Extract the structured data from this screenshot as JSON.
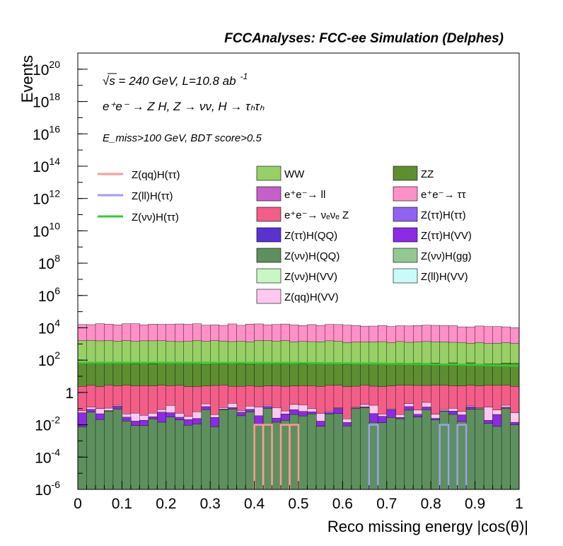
{
  "header": {
    "text": "FCCAnalyses: FCC-ee Simulation (Delphes)"
  },
  "annotations": {
    "line1": "√s = 240 GeV, L=10.8 ab",
    "line1_exp": "-1",
    "line2": "e⁺e⁻ → Z H, Z → νν, H → τₕτₕ",
    "line3": "E_miss>100 GeV, BDT score>0.5"
  },
  "chart_data": {
    "type": "bar",
    "stacked": true,
    "xlabel": "Reco missing energy |cos(θ)|",
    "ylabel": "Events",
    "xlim": [
      0,
      1
    ],
    "ylim": [
      1e-06,
      1e+21
    ],
    "log_y": true,
    "xticks": [
      "0",
      "0.1",
      "0.2",
      "0.3",
      "0.4",
      "0.5",
      "0.6",
      "0.7",
      "0.8",
      "0.9",
      "1"
    ],
    "yticks": [
      {
        "base": "10",
        "exp": "20"
      },
      {
        "base": "10",
        "exp": "18"
      },
      {
        "base": "10",
        "exp": "16"
      },
      {
        "base": "10",
        "exp": "14"
      },
      {
        "base": "10",
        "exp": "12"
      },
      {
        "base": "10",
        "exp": "10"
      },
      {
        "base": "10",
        "exp": "8"
      },
      {
        "base": "10",
        "exp": "6"
      },
      {
        "base": "10",
        "exp": "4"
      },
      {
        "base": "10",
        "exp": "2"
      },
      {
        "base": "1",
        "exp": ""
      },
      {
        "base": "10",
        "exp": "-2"
      },
      {
        "base": "10",
        "exp": "-4"
      },
      {
        "base": "10",
        "exp": "-6"
      }
    ],
    "stack_layers": [
      {
        "name": "Z(νν)H(QQ)",
        "color": "#5e8f5e",
        "approx_level": 0.03
      },
      {
        "name": "Z(ττ)H(VV)",
        "color": "#8b2be2",
        "approx_level": 0.015
      },
      {
        "name": "Z(qq)H(VV)",
        "color": "#ffc8f0",
        "approx_level": 0.03
      },
      {
        "name": "e⁺e⁻→ νₑνₑ Z",
        "color": "#f35e89",
        "approx_level": 2.5
      },
      {
        "name": "ZZ",
        "color": "#5e8e32",
        "approx_level": 60
      },
      {
        "name": "WW",
        "color": "#98cf66",
        "approx_level": 1500
      },
      {
        "name": "e⁺e⁻→ ττ",
        "color": "#ff90c8",
        "approx_level": 15000
      }
    ],
    "signal_lines": [
      {
        "name": "Z(qq)H(ττ)",
        "color": "#ff9a94"
      },
      {
        "name": "Z(ll)H(ττ)",
        "color": "#9aa0f2"
      },
      {
        "name": "Z(νν)H(ττ)",
        "color": "#33cc33"
      }
    ],
    "legend_left": [
      {
        "label": "Z(qq)H(ττ)",
        "color": "#ff9a94"
      },
      {
        "label": "Z(ll)H(ττ)",
        "color": "#9aa0f2"
      },
      {
        "label": "Z(νν)H(ττ)",
        "color": "#33cc33"
      }
    ],
    "legend_right": [
      {
        "label": "WW",
        "color": "#98cf66"
      },
      {
        "label": "ZZ",
        "color": "#5e8e32"
      },
      {
        "label": "e⁺e⁻→ ll",
        "color": "#c560c8"
      },
      {
        "label": "e⁺e⁻→ ττ",
        "color": "#ff90c8"
      },
      {
        "label": "e⁺e⁻→ νₑνₑ Z",
        "color": "#f35e89"
      },
      {
        "label": "Z(ττ)H(ττ)",
        "color": "#8f63f0"
      },
      {
        "label": "Z(ττ)H(QQ)",
        "color": "#5a32d0"
      },
      {
        "label": "Z(ττ)H(VV)",
        "color": "#8b2be2"
      },
      {
        "label": "Z(νν)H(QQ)",
        "color": "#5e8f5e"
      },
      {
        "label": "Z(νν)H(gg)",
        "color": "#93c893"
      },
      {
        "label": "Z(νν)H(VV)",
        "color": "#c9f7c3"
      },
      {
        "label": "Z(ll)H(VV)",
        "color": "#cafbfa"
      },
      {
        "label": "Z(qq)H(VV)",
        "color": "#ffc8f0"
      }
    ]
  }
}
